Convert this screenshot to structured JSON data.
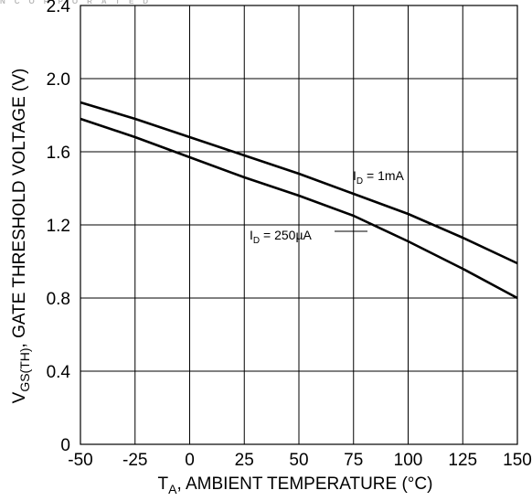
{
  "header_text": "NCORPORATED",
  "chart_data": {
    "type": "line",
    "title": "",
    "xlabel": {
      "main": "T",
      "sub": "A",
      "rest": ", AMBIENT TEMPERATURE (°C)"
    },
    "ylabel": {
      "main": "V",
      "sub": "GS(TH)",
      "rest": ", GATE THRESHOLD VOLTAGE (V)"
    },
    "xlim": [
      -50,
      150
    ],
    "ylim": [
      0,
      2.4
    ],
    "xticks": [
      -50,
      -25,
      0,
      25,
      50,
      75,
      100,
      125,
      150
    ],
    "xtick_labels": [
      "-50",
      "-25",
      "0",
      "25",
      "50",
      "75",
      "100",
      "125",
      "150"
    ],
    "yticks": [
      0,
      0.4,
      0.8,
      1.2,
      1.6,
      2.0,
      2.4
    ],
    "ytick_labels": [
      "0",
      "0.4",
      "0.8",
      "1.2",
      "1.6",
      "2.0",
      "2.4"
    ],
    "grid": true,
    "series": [
      {
        "label": {
          "main": "I",
          "sub": "D",
          "rest": " = 1mA"
        },
        "x": [
          -50,
          -25,
          0,
          25,
          50,
          75,
          100,
          125,
          150
        ],
        "y": [
          1.87,
          1.78,
          1.68,
          1.58,
          1.48,
          1.37,
          1.26,
          1.13,
          0.99
        ]
      },
      {
        "label": {
          "main": "I",
          "sub": "D",
          "rest": " = 250µA"
        },
        "x": [
          -50,
          -25,
          0,
          25,
          50,
          75,
          100,
          125,
          150
        ],
        "y": [
          1.78,
          1.68,
          1.57,
          1.46,
          1.36,
          1.25,
          1.11,
          0.96,
          0.8
        ]
      }
    ],
    "line_color": "#000000",
    "grid_color": "#000000"
  }
}
